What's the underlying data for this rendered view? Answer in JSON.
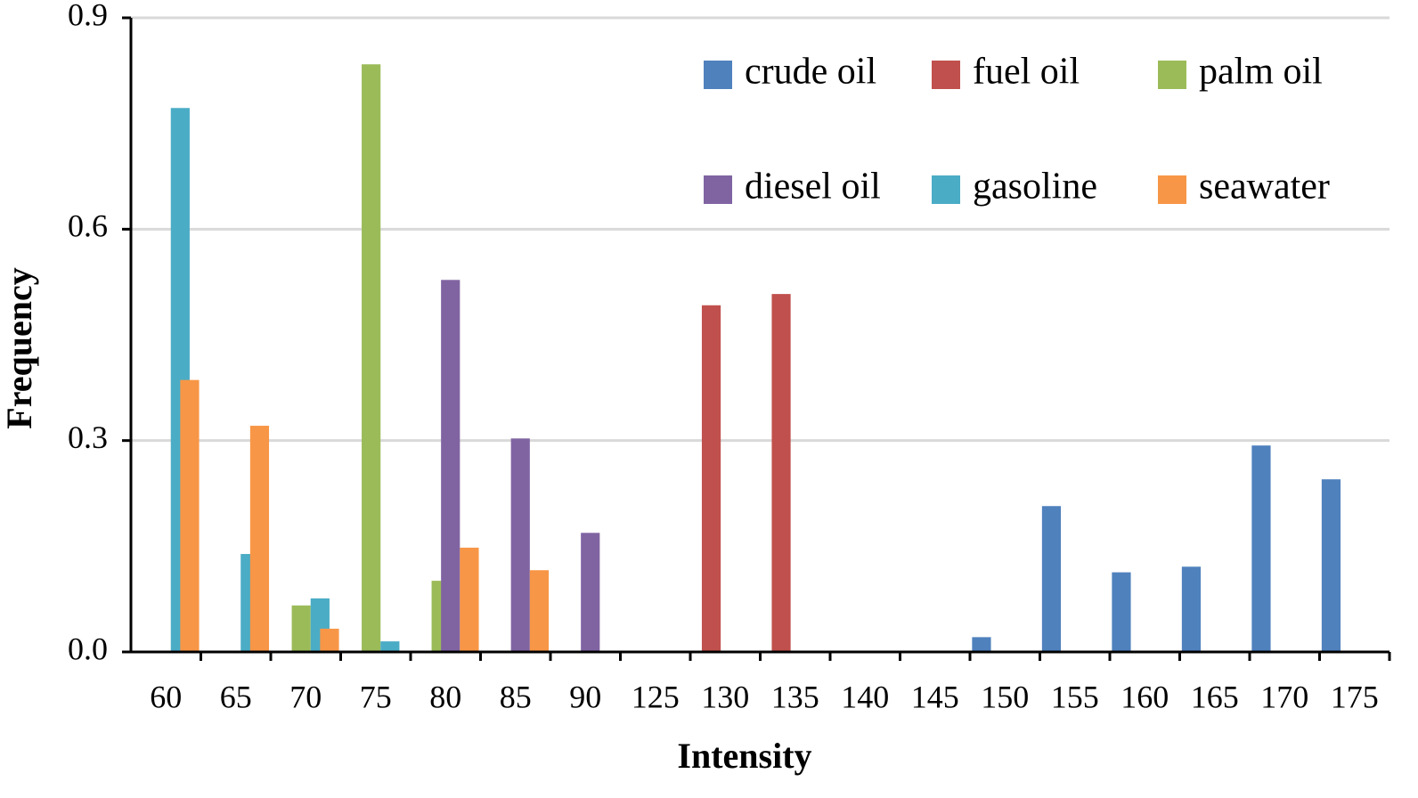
{
  "chart_data": {
    "type": "bar",
    "x_label": "Intensity",
    "y_label": "Frequency",
    "categories": [
      "60",
      "65",
      "70",
      "75",
      "80",
      "85",
      "90",
      "125",
      "130",
      "135",
      "140",
      "145",
      "150",
      "155",
      "160",
      "165",
      "170",
      "175"
    ],
    "series": [
      {
        "name": "crude oil",
        "color": "#4f81bd",
        "values": [
          null,
          null,
          null,
          null,
          null,
          null,
          null,
          null,
          null,
          null,
          null,
          null,
          0.021,
          0.207,
          0.113,
          0.121,
          0.293,
          0.245
        ]
      },
      {
        "name": "fuel oil",
        "color": "#c0504d",
        "values": [
          null,
          null,
          null,
          null,
          null,
          null,
          null,
          null,
          0.492,
          0.508,
          null,
          null,
          null,
          null,
          null,
          null,
          null,
          null
        ]
      },
      {
        "name": "palm oil",
        "color": "#9bbb59",
        "values": [
          null,
          null,
          0.066,
          0.834,
          0.101,
          null,
          null,
          null,
          null,
          null,
          null,
          null,
          null,
          null,
          null,
          null,
          null,
          null
        ]
      },
      {
        "name": "diesel oil",
        "color": "#8064a2",
        "values": [
          null,
          null,
          null,
          null,
          0.528,
          0.303,
          0.169,
          null,
          null,
          null,
          null,
          null,
          null,
          null,
          null,
          null,
          null,
          null
        ]
      },
      {
        "name": "gasoline",
        "color": "#4bacc6",
        "values": [
          0.772,
          0.139,
          0.076,
          0.015,
          null,
          null,
          null,
          null,
          null,
          null,
          null,
          null,
          null,
          null,
          null,
          null,
          null,
          null
        ]
      },
      {
        "name": "seawater",
        "color": "#f79646",
        "values": [
          0.386,
          0.321,
          0.033,
          null,
          0.148,
          0.116,
          null,
          null,
          null,
          null,
          null,
          null,
          null,
          null,
          null,
          null,
          null,
          null
        ]
      }
    ],
    "ylim": [
      0,
      0.9
    ],
    "yticks": [
      {
        "value": 0,
        "label": "0.0"
      },
      0.3,
      0.6,
      0.9
    ],
    "grid": true
  }
}
